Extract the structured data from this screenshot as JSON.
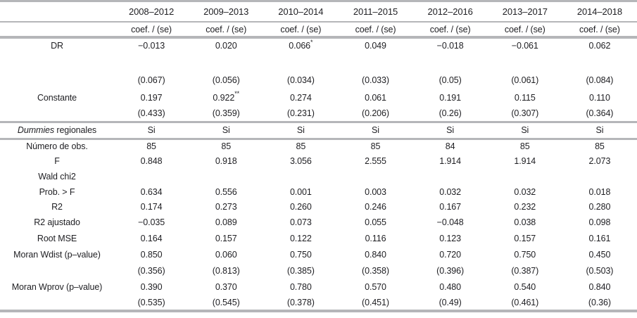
{
  "colors": {
    "rule_gray": "#b5b6b9",
    "text": "#1e1e22"
  },
  "table": {
    "column_headers": [
      "2008–2012",
      "2009–2013",
      "2010–2014",
      "2011–2015",
      "2012–2016",
      "2013–2017",
      "2014–2018"
    ],
    "subheader_label": "coef. / (se)",
    "rows": [
      {
        "label": "DR",
        "values": [
          "−0.013",
          "0.020",
          "0.066*",
          "0.049",
          "−0.018",
          "−0.061",
          "0.062"
        ]
      },
      {
        "label": "",
        "values": [
          "",
          "",
          "",
          "",
          "",
          "",
          ""
        ]
      },
      {
        "label": "",
        "values": [
          "(0.067)",
          "(0.056)",
          "(0.034)",
          "(0.033)",
          "(0.05)",
          "(0.061)",
          "(0.084)"
        ]
      },
      {
        "label": "Constante",
        "values": [
          "0.197",
          "0.922**",
          "0.274",
          "0.061",
          "0.191",
          "0.115",
          "0.110"
        ]
      },
      {
        "label": "",
        "values": [
          "(0.433)",
          "(0.359)",
          "(0.231)",
          "(0.206)",
          "(0.26)",
          "(0.307)",
          "(0.364)"
        ]
      },
      {
        "label": "Dummies regionales",
        "label_italic": "Dummies",
        "label_rest": " regionales",
        "values": [
          "Si",
          "Si",
          "Si",
          "Si",
          "Si",
          "Si",
          "Si"
        ]
      },
      {
        "label": "Número de obs.",
        "values": [
          "85",
          "85",
          "85",
          "85",
          "84",
          "85",
          "85"
        ]
      },
      {
        "label": "F",
        "values": [
          "0.848",
          "0.918",
          "3.056",
          "2.555",
          "1.914",
          "1.914",
          "2.073"
        ]
      },
      {
        "label": "Wald chi2",
        "values": [
          "",
          "",
          "",
          "",
          "",
          "",
          ""
        ]
      },
      {
        "label": "Prob. > F",
        "values": [
          "0.634",
          "0.556",
          "0.001",
          "0.003",
          "0.032",
          "0.032",
          "0.018"
        ]
      },
      {
        "label": "R2",
        "values": [
          "0.174",
          "0.273",
          "0.260",
          "0.246",
          "0.167",
          "0.232",
          "0.280"
        ]
      },
      {
        "label": "R2 ajustado",
        "values": [
          "−0.035",
          "0.089",
          "0.073",
          "0.055",
          "−0.048",
          "0.038",
          "0.098"
        ]
      },
      {
        "label": "Root MSE",
        "values": [
          "0.164",
          "0.157",
          "0.122",
          "0.116",
          "0.123",
          "0.157",
          "0.161"
        ]
      },
      {
        "label": "Moran Wdist (p–value)",
        "values": [
          "0.850",
          "0.060",
          "0.750",
          "0.840",
          "0.720",
          "0.750",
          "0.450"
        ]
      },
      {
        "label": "",
        "values": [
          "(0.356)",
          "(0.813)",
          "(0.385)",
          "(0.358)",
          "(0.396)",
          "(0.387)",
          "(0.503)"
        ]
      },
      {
        "label": "Moran Wprov (p–value)",
        "values": [
          "0.390",
          "0.370",
          "0.780",
          "0.570",
          "0.480",
          "0.540",
          "0.840"
        ]
      },
      {
        "label": "",
        "values": [
          "(0.535)",
          "(0.545)",
          "(0.378)",
          "(0.451)",
          "(0.49)",
          "(0.461)",
          "(0.36)"
        ]
      }
    ]
  }
}
